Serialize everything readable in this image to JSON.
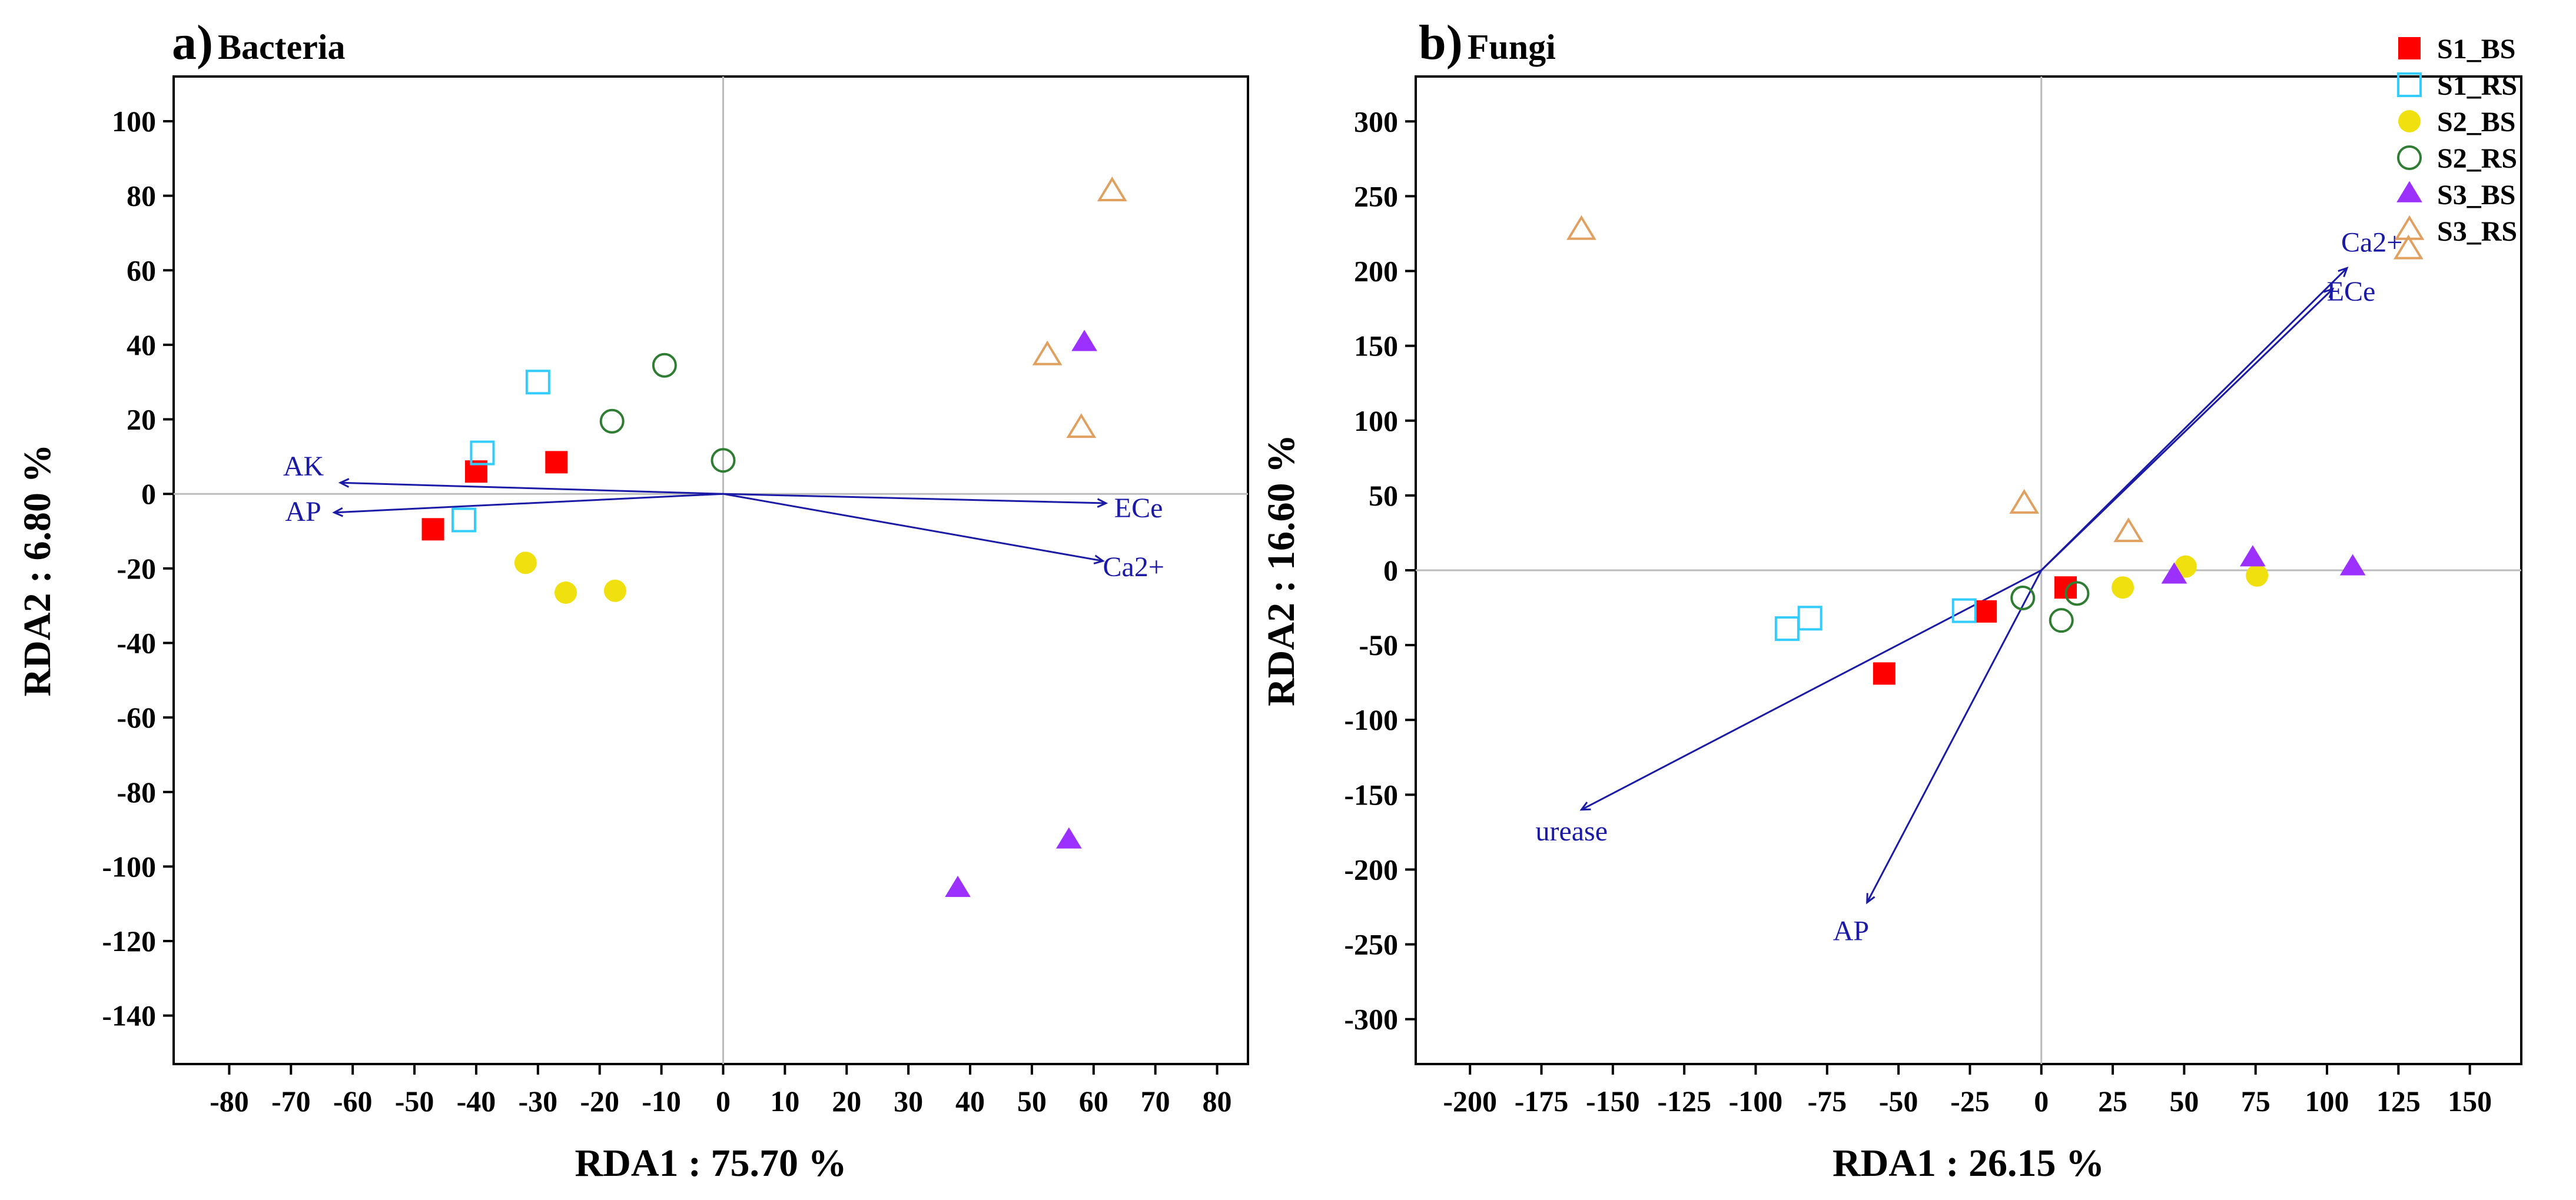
{
  "legend": [
    {
      "id": "S1_BS",
      "label": "S1_BS",
      "shape": "square",
      "filled": true,
      "color": "#ff0000"
    },
    {
      "id": "S1_RS",
      "label": "S1_RS",
      "shape": "square",
      "filled": false,
      "color": "#33ccff"
    },
    {
      "id": "S2_BS",
      "label": "S2_BS",
      "shape": "circle",
      "filled": true,
      "color": "#f0e010"
    },
    {
      "id": "S2_RS",
      "label": "S2_RS",
      "shape": "circle",
      "filled": false,
      "color": "#2e7d32"
    },
    {
      "id": "S3_BS",
      "label": "S3_BS",
      "shape": "triangle",
      "filled": true,
      "color": "#9b30ff"
    },
    {
      "id": "S3_RS",
      "label": "S3_RS",
      "shape": "triangle",
      "filled": false,
      "color": "#e0a060"
    }
  ],
  "colors": {
    "vector": "#1a1aa6",
    "reference": "#bbbbbb",
    "frame": "#000000"
  },
  "chart_data": [
    {
      "type": "scatter",
      "panel_letter": "a)",
      "title": "Bacteria",
      "xlabel": "RDA1 : 75.70 %",
      "ylabel": "RDA2 : 6.80 %",
      "xlim": [
        -89,
        85
      ],
      "ylim": [
        -153,
        112
      ],
      "xticks": [
        -80,
        -70,
        -60,
        -50,
        -40,
        -30,
        -20,
        -10,
        0,
        10,
        20,
        30,
        40,
        50,
        60,
        70,
        80
      ],
      "yticks": [
        -140,
        -120,
        -100,
        -80,
        -60,
        -40,
        -20,
        0,
        20,
        40,
        60,
        80,
        100
      ],
      "series": [
        {
          "name": "S1_BS",
          "points": [
            [
              -40,
              6
            ],
            [
              -27,
              8.5
            ],
            [
              -47,
              -9.5
            ]
          ]
        },
        {
          "name": "S1_RS",
          "points": [
            [
              -30,
              30
            ],
            [
              -39,
              11
            ],
            [
              -42,
              -7
            ]
          ]
        },
        {
          "name": "S2_BS",
          "points": [
            [
              -32,
              -18.5
            ],
            [
              -25.5,
              -26.5
            ],
            [
              -17.5,
              -26
            ]
          ]
        },
        {
          "name": "S2_RS",
          "points": [
            [
              -9.5,
              34.5
            ],
            [
              -18,
              19.5
            ],
            [
              0,
              9
            ]
          ]
        },
        {
          "name": "S3_BS",
          "points": [
            [
              58.5,
              40.5
            ],
            [
              56,
              -93
            ],
            [
              38,
              -106
            ]
          ]
        },
        {
          "name": "S3_RS",
          "points": [
            [
              63,
              81
            ],
            [
              52.5,
              37
            ],
            [
              58,
              17.5
            ]
          ]
        }
      ],
      "vectors": [
        {
          "label": "AK",
          "x": -62,
          "y": 3
        },
        {
          "label": "AP",
          "x": -63,
          "y": -5
        },
        {
          "label": "ECe",
          "x": 62,
          "y": -2.5
        },
        {
          "label": "Ca2+",
          "x": 61.5,
          "y": -18
        }
      ]
    },
    {
      "type": "scatter",
      "panel_letter": "b)",
      "title": "Fungi",
      "xlabel": "RDA1 : 26.15 %",
      "ylabel": "RDA2 : 16.60 %",
      "xlim": [
        -219,
        168
      ],
      "ylim": [
        -330,
        330
      ],
      "xticks": [
        -200,
        -175,
        -150,
        -125,
        -100,
        -75,
        -50,
        -25,
        0,
        25,
        50,
        75,
        100,
        125,
        150
      ],
      "yticks": [
        -300,
        -250,
        -200,
        -150,
        -100,
        -50,
        0,
        50,
        100,
        150,
        200,
        250,
        300
      ],
      "series": [
        {
          "name": "S1_BS",
          "points": [
            [
              -55,
              -69
            ],
            [
              -19.5,
              -27.5
            ],
            [
              8.5,
              -11.5
            ]
          ]
        },
        {
          "name": "S1_RS",
          "points": [
            [
              -89,
              -39
            ],
            [
              -81,
              -32
            ],
            [
              -27,
              -27
            ]
          ]
        },
        {
          "name": "S2_BS",
          "points": [
            [
              28.5,
              -11.5
            ],
            [
              50.5,
              2.5
            ],
            [
              75.5,
              -3.5
            ]
          ]
        },
        {
          "name": "S2_RS",
          "points": [
            [
              -6.5,
              -18.5
            ],
            [
              12.5,
              -15.5
            ],
            [
              7,
              -33.5
            ]
          ]
        },
        {
          "name": "S3_BS",
          "points": [
            [
              46.5,
              -3.5
            ],
            [
              74,
              8
            ],
            [
              109,
              2
            ]
          ]
        },
        {
          "name": "S3_RS",
          "points": [
            [
              -161,
              227
            ],
            [
              -6,
              44
            ],
            [
              30.5,
              25
            ],
            [
              128.5,
              214
            ]
          ]
        }
      ],
      "vectors": [
        {
          "label": "Ca2+",
          "x": 107,
          "y": 202
        },
        {
          "label": "ECe",
          "x": 102,
          "y": 188
        },
        {
          "label": "urease",
          "x": -161,
          "y": -160
        },
        {
          "label": "AP",
          "x": -61,
          "y": -222
        }
      ]
    }
  ]
}
